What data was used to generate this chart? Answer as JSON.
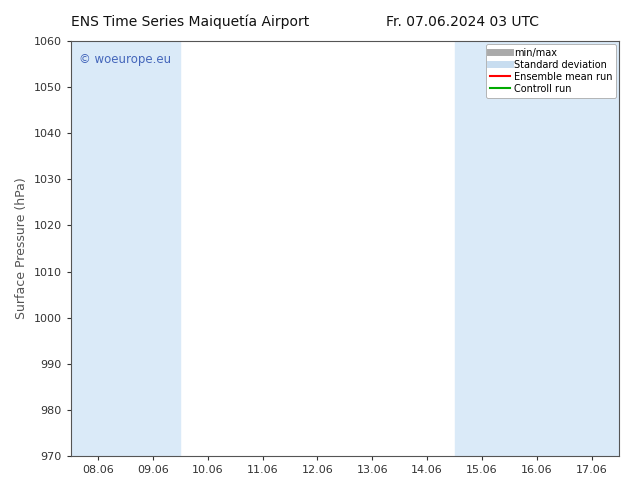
{
  "title_left": "ENS Time Series Maiquetía Airport",
  "title_right": "Fr. 07.06.2024 03 UTC",
  "ylabel": "Surface Pressure (hPa)",
  "ylim": [
    970,
    1060
  ],
  "yticks": [
    970,
    980,
    990,
    1000,
    1010,
    1020,
    1030,
    1040,
    1050,
    1060
  ],
  "x_labels": [
    "08.06",
    "09.06",
    "10.06",
    "11.06",
    "12.06",
    "13.06",
    "14.06",
    "15.06",
    "16.06",
    "17.06"
  ],
  "x_positions": [
    0,
    1,
    2,
    3,
    4,
    5,
    6,
    7,
    8,
    9
  ],
  "x_min": -0.5,
  "x_max": 9.5,
  "shaded_bands": [
    {
      "x_start": -0.5,
      "x_end": 0.5
    },
    {
      "x_start": 0.5,
      "x_end": 1.5
    },
    {
      "x_start": 6.5,
      "x_end": 7.5
    },
    {
      "x_start": 7.5,
      "x_end": 8.5
    },
    {
      "x_start": 8.5,
      "x_end": 9.5
    }
  ],
  "shade_color": "#daeaf8",
  "watermark": "© woeurope.eu",
  "watermark_color": "#4466bb",
  "bg_color": "#ffffff",
  "legend_items": [
    {
      "label": "min/max",
      "color": "#aaaaaa",
      "lw": 5,
      "ls": "-"
    },
    {
      "label": "Standard deviation",
      "color": "#c8ddf0",
      "lw": 5,
      "ls": "-"
    },
    {
      "label": "Ensemble mean run",
      "color": "#ff0000",
      "lw": 1.5,
      "ls": "-"
    },
    {
      "label": "Controll run",
      "color": "#00aa00",
      "lw": 1.5,
      "ls": "-"
    }
  ],
  "axis_color": "#555555",
  "tick_color": "#333333",
  "font_size": 8,
  "title_font_size": 10
}
